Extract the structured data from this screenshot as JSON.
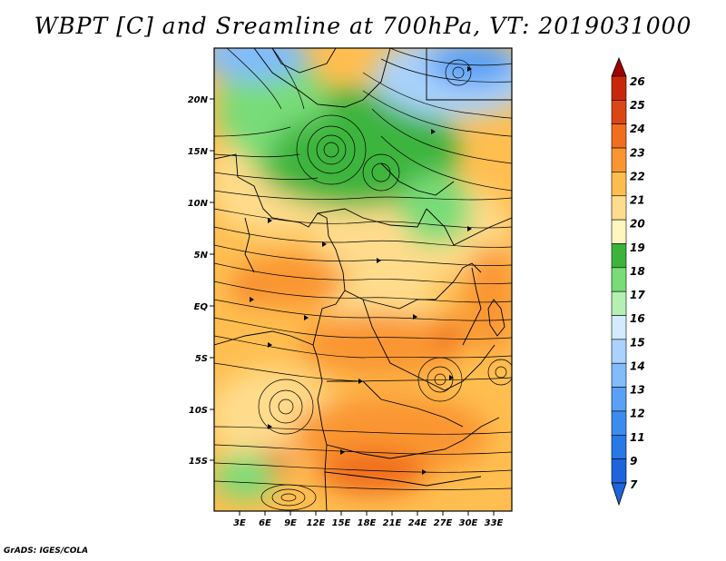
{
  "title": "WBPT [C] and Sreamline at 700hPa, VT: 2019031000",
  "credit": "GrADS: IGES/COLA",
  "map": {
    "lat_labels": [
      "20N",
      "15N",
      "10N",
      "5N",
      "EQ",
      "5S",
      "10S",
      "15S"
    ],
    "lon_labels": [
      "3E",
      "6E",
      "9E",
      "12E",
      "15E",
      "18E",
      "21E",
      "24E",
      "27E",
      "30E",
      "33E"
    ]
  },
  "colorbar": {
    "levels": [
      "7",
      "9",
      "11",
      "12",
      "13",
      "14",
      "15",
      "16",
      "17",
      "18",
      "19",
      "20",
      "21",
      "22",
      "23",
      "24",
      "25",
      "26"
    ],
    "colors": [
      "#1e64dc",
      "#2878e6",
      "#3c8cf0",
      "#5aa0f5",
      "#82bcfa",
      "#aad2fc",
      "#d2ebff",
      "#b4f0b4",
      "#78dc78",
      "#3cb43c",
      "#fff5be",
      "#ffdc8c",
      "#ffbe50",
      "#fa9632",
      "#f06e1e",
      "#dc4614",
      "#c8280a",
      "#a00000"
    ],
    "low_color": "#1e64dc",
    "high_color": "#a00000"
  }
}
